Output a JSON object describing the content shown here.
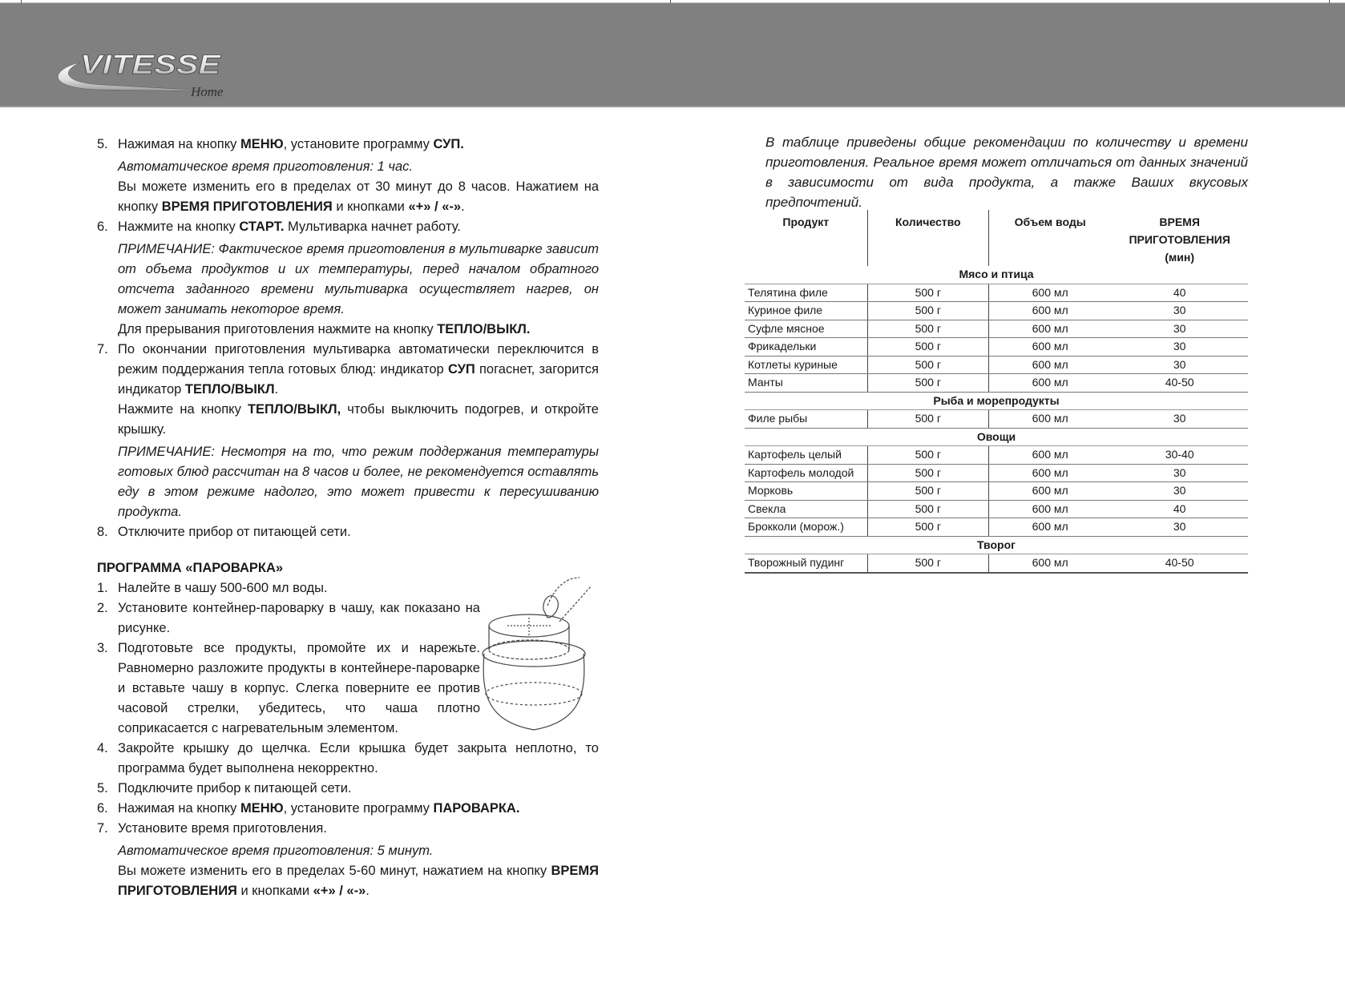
{
  "brand": {
    "logo_text": "VITESSE",
    "logo_sub": "Home"
  },
  "left": {
    "blocks": [
      {
        "kind": "item",
        "num": "5.",
        "segs": [
          {
            "t": "Нажимая на кнопку "
          },
          {
            "t": "МЕНЮ",
            "b": true
          },
          {
            "t": ", установите программу "
          },
          {
            "t": "СУП.",
            "b": true
          }
        ]
      },
      {
        "kind": "note",
        "segs": [
          {
            "t": "Автоматическое время приготовления: 1 час."
          }
        ]
      },
      {
        "kind": "para",
        "segs": [
          {
            "t": "Вы можете изменить его в пределах от 30 минут до 8 часов. Нажатием на кнопку "
          },
          {
            "t": "ВРЕМЯ ПРИГОТОВЛЕНИЯ",
            "b": true
          },
          {
            "t": " и кнопками "
          },
          {
            "t": "«+» / «-»",
            "b": true
          },
          {
            "t": "."
          }
        ]
      },
      {
        "kind": "item",
        "num": "6.",
        "segs": [
          {
            "t": "Нажмите на кнопку "
          },
          {
            "t": "СТАРТ.",
            "b": true
          },
          {
            "t": " Мультиварка начнет работу."
          }
        ]
      },
      {
        "kind": "note",
        "segs": [
          {
            "t": "ПРИМЕЧАНИЕ: Фактическое время приготовления в мультиварке зависит от объема продуктов и их температуры, перед началом обратного отсчета заданного времени мультиварка осуществляет нагрев, он может занимать некоторое время."
          }
        ]
      },
      {
        "kind": "para",
        "segs": [
          {
            "t": "Для прерывания приготовления нажмите на кнопку "
          },
          {
            "t": "ТЕПЛО/ВЫКЛ.",
            "b": true
          }
        ]
      },
      {
        "kind": "item",
        "num": "7.",
        "segs": [
          {
            "t": "По окончании приготовления мультиварка автоматически переключится в режим поддержания тепла готовых блюд: индикатор "
          },
          {
            "t": "СУП",
            "b": true
          },
          {
            "t": " погаснет, загорится индикатор "
          },
          {
            "t": "ТЕПЛО/ВЫКЛ",
            "b": true
          },
          {
            "t": "."
          }
        ]
      },
      {
        "kind": "para",
        "segs": [
          {
            "t": "Нажмите на кнопку "
          },
          {
            "t": "ТЕПЛО/ВЫКЛ,",
            "b": true
          },
          {
            "t": " чтобы выключить подогрев, и откройте крышку."
          }
        ]
      },
      {
        "kind": "note",
        "segs": [
          {
            "t": "ПРИМЕЧАНИЕ: Несмотря на то, что режим поддержания температуры готовых блюд рассчитан на 8 часов и более, не рекомендуется оставлять еду в этом режиме надолго, это может привести к пересушиванию продукта."
          }
        ]
      },
      {
        "kind": "item",
        "num": "8.",
        "segs": [
          {
            "t": "Отключите прибор от питающей сети."
          }
        ]
      }
    ],
    "steamer_heading": "ПРОГРАММА «ПАРОВАРКА»",
    "steamer_blocks": [
      {
        "kind": "item",
        "num": "1.",
        "segs": [
          {
            "t": "Налейте в чашу 500-600 мл воды."
          }
        ]
      },
      {
        "kind": "item narrow",
        "num": "2.",
        "segs": [
          {
            "t": "Установите контейнер-пароварку в чашу, как показано на рисунке."
          }
        ]
      },
      {
        "kind": "item narrow",
        "num": "3.",
        "segs": [
          {
            "t": "Подготовьте все продукты, промойте их и нарежьте. Равномерно разложите продукты в контейнере-пароварке и вставьте чашу в корпус. Слегка поверните ее против часовой стрелки, убедитесь, что чаша плотно соприкасается с нагревательным элементом."
          }
        ]
      },
      {
        "kind": "item",
        "num": "4.",
        "segs": [
          {
            "t": "Закройте крышку до щелчка. Если крышка будет закрыта неплотно, то программа будет выполнена некорректно."
          }
        ]
      },
      {
        "kind": "item",
        "num": "5.",
        "segs": [
          {
            "t": "Подключите прибор к питающей сети."
          }
        ]
      },
      {
        "kind": "item",
        "num": "6.",
        "segs": [
          {
            "t": "Нажимая на кнопку "
          },
          {
            "t": "МЕНЮ",
            "b": true
          },
          {
            "t": ", установите программу "
          },
          {
            "t": "ПАРОВАРКА.",
            "b": true
          }
        ]
      },
      {
        "kind": "item",
        "num": "7.",
        "segs": [
          {
            "t": "Установите время приготовления."
          }
        ]
      },
      {
        "kind": "note",
        "segs": [
          {
            "t": "Автоматическое время приготовления: 5 минут."
          }
        ]
      },
      {
        "kind": "para",
        "segs": [
          {
            "t": "Вы можете изменить его в пределах 5-60 минут, нажатием на кнопку "
          },
          {
            "t": "ВРЕМЯ ПРИГОТОВЛЕНИЯ",
            "b": true
          },
          {
            "t": " и кнопками "
          },
          {
            "t": "«+» / «-»",
            "b": true
          },
          {
            "t": "."
          }
        ]
      }
    ]
  },
  "right": {
    "intro": "В таблице приведены общие рекомендации по количеству и времени приготовления. Реальное время может отличаться от данных значений в зависимости от вида продукта, а также Ваших вкусовых предпочтений.",
    "table": {
      "headers": [
        "Продукт",
        "Количество",
        "Объем воды",
        "ВРЕМЯ ПРИГОТОВЛЕНИЯ (мин)"
      ],
      "sections": [
        {
          "title": "Мясо и птица",
          "rows": [
            [
              "Телятина филе",
              "500 г",
              "600 мл",
              "40"
            ],
            [
              "Куриное филе",
              "500 г",
              "600 мл",
              "30"
            ],
            [
              "Суфле мясное",
              "500 г",
              "600 мл",
              "30"
            ],
            [
              "Фрикадельки",
              "500 г",
              "600 мл",
              "30"
            ],
            [
              "Котлеты куриные",
              "500 г",
              "600 мл",
              "30"
            ],
            [
              "Манты",
              "500 г",
              "600 мл",
              "40-50"
            ]
          ]
        },
        {
          "title": "Рыба и морепродукты",
          "rows": [
            [
              "Филе рыбы",
              "500 г",
              "600 мл",
              "30"
            ]
          ]
        },
        {
          "title": "Овощи",
          "rows": [
            [
              "Картофель целый",
              "500 г",
              "600 мл",
              "30-40"
            ],
            [
              "Картофель молодой",
              "500 г",
              "600 мл",
              "30"
            ],
            [
              "Морковь",
              "500 г",
              "600 мл",
              "30"
            ],
            [
              "Свекла",
              "500 г",
              "600 мл",
              "40"
            ],
            [
              "Брокколи (морож.)",
              "500 г",
              "600 мл",
              "30"
            ]
          ]
        },
        {
          "title": "Творог",
          "rows": [
            [
              "Творожный пудинг",
              "500 г",
              "600 мл",
              "40-50"
            ]
          ]
        }
      ]
    }
  }
}
